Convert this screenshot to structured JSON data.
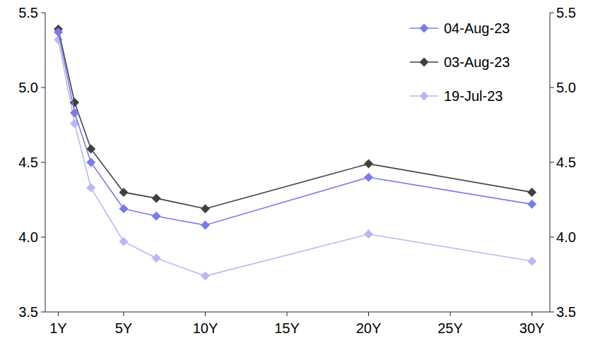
{
  "chart_data": {
    "type": "line",
    "x": [
      1,
      2,
      3,
      5,
      7,
      10,
      20,
      30
    ],
    "series": [
      {
        "name": "04-Aug-23",
        "color": "#7b7be8",
        "marker": "diamond",
        "values": [
          5.37,
          4.83,
          4.5,
          4.19,
          4.14,
          4.08,
          4.4,
          4.22
        ]
      },
      {
        "name": "03-Aug-23",
        "color": "#404040",
        "marker": "diamond",
        "values": [
          5.39,
          4.9,
          4.59,
          4.3,
          4.26,
          4.19,
          4.49,
          4.3
        ]
      },
      {
        "name": "19-Jul-23",
        "color": "#b8b8f2",
        "marker": "diamond",
        "values": [
          5.32,
          4.76,
          4.33,
          3.97,
          3.86,
          3.74,
          4.02,
          3.84
        ]
      }
    ],
    "xlim": [
      0.2,
      31.1
    ],
    "xticks": [
      {
        "value": 1,
        "label": "1Y"
      },
      {
        "value": 5,
        "label": "5Y"
      },
      {
        "value": 10,
        "label": "10Y"
      },
      {
        "value": 15,
        "label": "15Y"
      },
      {
        "value": 20,
        "label": "20Y"
      },
      {
        "value": 25,
        "label": "25Y"
      },
      {
        "value": 30,
        "label": "30Y"
      }
    ],
    "ylim": [
      3.5,
      5.5
    ],
    "yticks": [
      3.5,
      {
        "value": 4,
        "label": "4.0"
      },
      4.5,
      {
        "value": 5,
        "label": "5.0"
      },
      5.5
    ],
    "y2lim": [
      3.5,
      5.5
    ],
    "y2ticks": [
      3.5,
      {
        "value": 4,
        "label": "4.0"
      },
      4.5,
      {
        "value": 5,
        "label": "5.0"
      },
      5.5
    ],
    "legend": "top-right",
    "grid": false
  }
}
